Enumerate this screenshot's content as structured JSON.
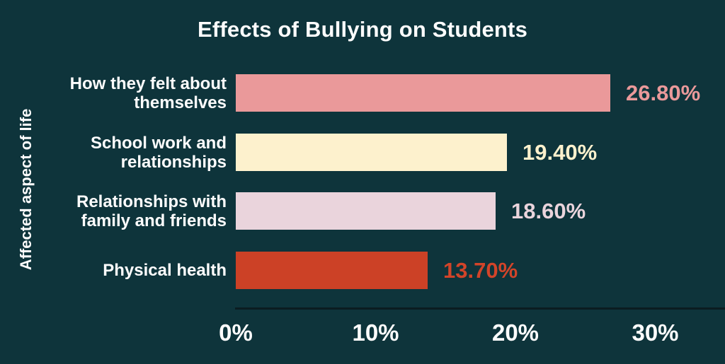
{
  "chart_data": {
    "type": "bar",
    "orientation": "horizontal",
    "title": "Effects of Bullying on Students",
    "xlabel": "",
    "ylabel": "Affected aspect of life",
    "categories": [
      "How they felt about themselves",
      "School work and relationships",
      "Relationships with family and friends",
      "Physical health"
    ],
    "label_lines": [
      [
        "How they felt about",
        "themselves"
      ],
      [
        "School work and",
        "relationships"
      ],
      [
        "Relationships with",
        "family and friends"
      ],
      [
        "Physical health"
      ]
    ],
    "values": [
      26.8,
      19.4,
      18.6,
      13.7
    ],
    "value_labels": [
      "26.80%",
      "19.40%",
      "18.60%",
      "13.70%"
    ],
    "bar_colors": [
      "#ea999a",
      "#fdf1cd",
      "#ead4dc",
      "#cc4126"
    ],
    "value_label_colors": [
      "#ea999a",
      "#fdf1cd",
      "#ead4dc",
      "#d24429"
    ],
    "x_ticks": [
      {
        "value": 0,
        "label": "0%"
      },
      {
        "value": 10,
        "label": "10%"
      },
      {
        "value": 20,
        "label": "20%"
      },
      {
        "value": 30,
        "label": "30%"
      }
    ],
    "xlim": [
      0,
      35
    ],
    "grid": false,
    "legend": false,
    "background_color": "#0e343b",
    "text_color": "#fdfdfd",
    "axis_line_color": "#0b1c21"
  }
}
